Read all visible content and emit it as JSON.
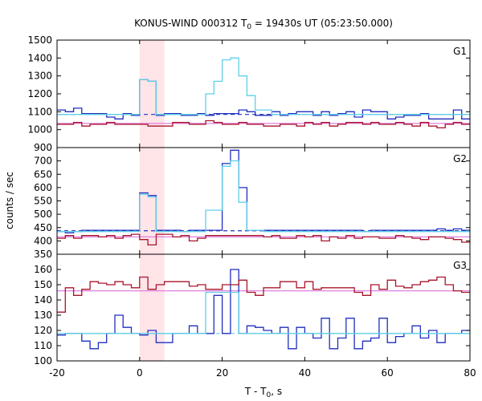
{
  "title": "KONUS-WIND 000312 T",
  "title_sub": "0",
  "title_rest": " = 19430s UT (05:23:50.000)",
  "ylabel": "counts / sec",
  "xlabel_main": "T - T",
  "xlabel_sub": "0",
  "xlabel_rest": ", s",
  "colors": {
    "dark_blue": "#1f2fbf",
    "cyan": "#5fd0e8",
    "dark_red": "#a8142a",
    "pink": "#e080e0",
    "shade": "#ffe4e8"
  },
  "chart_data": {
    "type": "line",
    "x_range": [
      -20,
      80
    ],
    "x_ticks": [
      -20,
      0,
      20,
      40,
      60,
      80
    ],
    "x_tick_labels": [
      "-20",
      "0",
      "20",
      "40",
      "60",
      "80"
    ],
    "shaded_interval": [
      0,
      6
    ],
    "bin_width": 2,
    "bin_start": -20,
    "panels": [
      {
        "label": "G1",
        "ylim": [
          900,
          1500
        ],
        "y_ticks": [
          900,
          1000,
          1100,
          1200,
          1300,
          1400,
          1500
        ],
        "series": [
          {
            "color": "dark_blue",
            "values": [
              1110,
              1100,
              1120,
              1090,
              1090,
              1090,
              1070,
              1060,
              1090,
              1080,
              1280,
              1270,
              1080,
              1090,
              1090,
              1080,
              1080,
              1090,
              1080,
              1090,
              1090,
              1090,
              1110,
              1100,
              1080,
              1080,
              1100,
              1080,
              1090,
              1100,
              1100,
              1080,
              1100,
              1080,
              1090,
              1100,
              1070,
              1110,
              1100,
              1100,
              1060,
              1070,
              1080,
              1080,
              1090,
              1060,
              1060,
              1060,
              1110,
              1060
            ]
          },
          {
            "color": "cyan",
            "values": [
              1085,
              1085,
              1085,
              1085,
              1085,
              1085,
              1085,
              1085,
              1085,
              1085,
              1280,
              1270,
              1085,
              1085,
              1085,
              1085,
              1085,
              1085,
              1200,
              1270,
              1390,
              1400,
              1300,
              1190,
              1110,
              1110,
              1085,
              1085,
              1085,
              1085,
              1085,
              1085,
              1085,
              1085,
              1085,
              1085,
              1085,
              1085,
              1085,
              1085,
              1085,
              1085,
              1085,
              1085,
              1085,
              1085,
              1085,
              1085,
              1085,
              1085
            ]
          },
          {
            "color": "dark_red",
            "values": [
              1030,
              1030,
              1040,
              1020,
              1030,
              1030,
              1040,
              1030,
              1030,
              1030,
              1030,
              1020,
              1020,
              1020,
              1040,
              1040,
              1030,
              1030,
              1050,
              1040,
              1030,
              1030,
              1040,
              1030,
              1030,
              1020,
              1020,
              1030,
              1030,
              1020,
              1040,
              1030,
              1040,
              1020,
              1030,
              1040,
              1040,
              1030,
              1040,
              1030,
              1030,
              1040,
              1030,
              1020,
              1040,
              1020,
              1010,
              1030,
              1040,
              1030
            ]
          }
        ],
        "fits": [
          {
            "color": "dark_blue",
            "value": 1085,
            "dashed": true
          },
          {
            "color": "pink",
            "value": 1035,
            "dashed": false
          }
        ]
      },
      {
        "label": "G2",
        "ylim": [
          350,
          750
        ],
        "y_ticks": [
          350,
          400,
          450,
          500,
          550,
          600,
          650,
          700
        ],
        "series": [
          {
            "color": "dark_blue",
            "values": [
              435,
              430,
              435,
              440,
              440,
              440,
              440,
              440,
              440,
              440,
              580,
              570,
              440,
              440,
              440,
              435,
              440,
              440,
              440,
              440,
              690,
              740,
              600,
              440,
              440,
              440,
              440,
              440,
              440,
              440,
              440,
              440,
              440,
              440,
              440,
              440,
              440,
              435,
              440,
              440,
              440,
              440,
              440,
              440,
              440,
              440,
              445,
              440,
              445,
              440
            ]
          },
          {
            "color": "cyan",
            "values": [
              435,
              435,
              435,
              435,
              435,
              435,
              435,
              435,
              435,
              435,
              575,
              565,
              435,
              435,
              435,
              435,
              435,
              435,
              515,
              515,
              680,
              700,
              545,
              440,
              440,
              435,
              435,
              435,
              435,
              435,
              435,
              435,
              435,
              435,
              435,
              435,
              435,
              435,
              435,
              435,
              435,
              435,
              435,
              435,
              435,
              435,
              435,
              435,
              435,
              435
            ]
          },
          {
            "color": "dark_red",
            "values": [
              410,
              420,
              410,
              420,
              420,
              415,
              420,
              410,
              420,
              425,
              405,
              385,
              425,
              425,
              415,
              420,
              400,
              410,
              420,
              420,
              420,
              420,
              420,
              420,
              420,
              415,
              420,
              410,
              410,
              420,
              415,
              420,
              400,
              415,
              410,
              420,
              410,
              415,
              415,
              410,
              410,
              420,
              415,
              410,
              405,
              415,
              415,
              410,
              405,
              395
            ]
          }
        ],
        "fits": [
          {
            "color": "dark_blue",
            "value": 438,
            "dashed": true
          },
          {
            "color": "pink",
            "value": 415,
            "dashed": false
          }
        ]
      },
      {
        "label": "G3",
        "ylim": [
          100,
          170
        ],
        "y_ticks": [
          100,
          110,
          120,
          130,
          140,
          150,
          160
        ],
        "series": [
          {
            "color": "dark_blue",
            "values": [
              117,
              118,
              118,
              113,
              108,
              112,
              118,
              130,
              122,
              118,
              117,
              120,
              112,
              112,
              118,
              118,
              123,
              118,
              118,
              143,
              118,
              160,
              118,
              123,
              122,
              120,
              118,
              122,
              108,
              122,
              118,
              115,
              128,
              108,
              115,
              128,
              108,
              113,
              115,
              128,
              112,
              116,
              118,
              123,
              115,
              120,
              112,
              118,
              118,
              120
            ]
          },
          {
            "color": "cyan",
            "values": [
              118,
              118,
              118,
              118,
              118,
              118,
              118,
              118,
              118,
              118,
              118,
              118,
              118,
              118,
              118,
              118,
              118,
              118,
              145,
              145,
              145,
              145,
              118,
              118,
              118,
              118,
              118,
              118,
              118,
              118,
              118,
              118,
              118,
              118,
              118,
              118,
              118,
              118,
              118,
              118,
              118,
              118,
              118,
              118,
              118,
              118,
              118,
              118,
              118,
              118
            ]
          },
          {
            "color": "dark_red",
            "values": [
              132,
              148,
              143,
              147,
              152,
              151,
              150,
              152,
              150,
              148,
              155,
              147,
              150,
              152,
              152,
              152,
              149,
              150,
              147,
              147,
              150,
              150,
              153,
              145,
              143,
              148,
              148,
              152,
              152,
              148,
              152,
              147,
              148,
              148,
              148,
              148,
              145,
              143,
              150,
              147,
              153,
              149,
              148,
              150,
              152,
              153,
              155,
              150,
              146,
              145
            ]
          }
        ],
        "fits": [
          {
            "color": "cyan",
            "value": 118,
            "dashed": true
          },
          {
            "color": "pink",
            "value": 146,
            "dashed": false
          }
        ]
      }
    ]
  }
}
